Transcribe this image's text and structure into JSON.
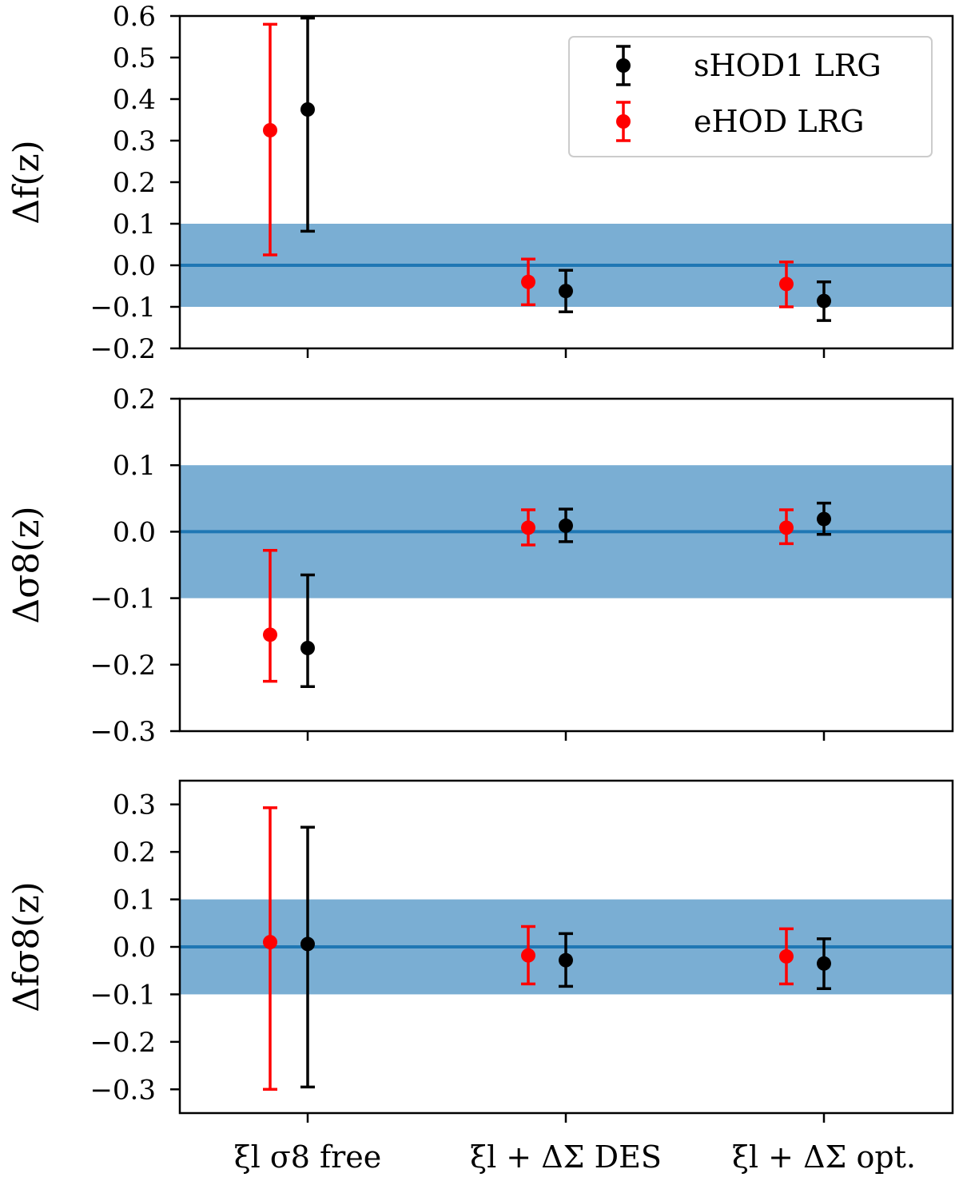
{
  "chart_data": {
    "type": "errorbar",
    "categories": [
      "ξl  σ8 free",
      "ξl + ΔΣ DES",
      "ξl + ΔΣ opt."
    ],
    "legend": {
      "placement": "top-right",
      "entries": [
        {
          "label": "sHOD1 LRG",
          "color": "#000000"
        },
        {
          "label": "eHOD LRG",
          "color": "#ff0000"
        }
      ]
    },
    "band": {
      "lower": -0.1,
      "upper": 0.1,
      "color": "#7aaed3",
      "line_color": "#1f77b4"
    },
    "panels": [
      {
        "ylabel": "Δf(z)",
        "ylim": [
          -0.2,
          0.6
        ],
        "yticks": [
          {
            "value": -0.2,
            "label": "−0.2"
          },
          {
            "value": -0.1,
            "label": "−0.1"
          },
          {
            "value": 0.0,
            "label": "0.0"
          },
          {
            "value": 0.1,
            "label": "0.1"
          },
          {
            "value": 0.2,
            "label": "0.2"
          },
          {
            "value": 0.3,
            "label": "0.3"
          },
          {
            "value": 0.4,
            "label": "0.4"
          },
          {
            "value": 0.5,
            "label": "0.5"
          },
          {
            "value": 0.6,
            "label": "0.6"
          }
        ],
        "show_xtick_labels": false,
        "show_legend": true,
        "series": [
          {
            "name": "eHOD LRG",
            "points": [
              {
                "y": 0.325,
                "lo": 0.025,
                "hi": 0.58
              },
              {
                "y": -0.04,
                "lo": -0.095,
                "hi": 0.015
              },
              {
                "y": -0.045,
                "lo": -0.1,
                "hi": 0.008
              }
            ]
          },
          {
            "name": "sHOD1 LRG",
            "points": [
              {
                "y": 0.375,
                "lo": 0.082,
                "hi": 0.595
              },
              {
                "y": -0.062,
                "lo": -0.112,
                "hi": -0.012
              },
              {
                "y": -0.086,
                "lo": -0.133,
                "hi": -0.04
              }
            ]
          }
        ]
      },
      {
        "ylabel": "Δσ8(z)",
        "ylim": [
          -0.3,
          0.2
        ],
        "yticks": [
          {
            "value": -0.3,
            "label": "−0.3"
          },
          {
            "value": -0.2,
            "label": "−0.2"
          },
          {
            "value": -0.1,
            "label": "−0.1"
          },
          {
            "value": 0.0,
            "label": "0.0"
          },
          {
            "value": 0.1,
            "label": "0.1"
          },
          {
            "value": 0.2,
            "label": "0.2"
          }
        ],
        "show_xtick_labels": false,
        "show_legend": false,
        "series": [
          {
            "name": "eHOD LRG",
            "points": [
              {
                "y": -0.155,
                "lo": -0.225,
                "hi": -0.028
              },
              {
                "y": 0.006,
                "lo": -0.02,
                "hi": 0.033
              },
              {
                "y": 0.006,
                "lo": -0.018,
                "hi": 0.033
              }
            ]
          },
          {
            "name": "sHOD1 LRG",
            "points": [
              {
                "y": -0.175,
                "lo": -0.233,
                "hi": -0.065
              },
              {
                "y": 0.009,
                "lo": -0.015,
                "hi": 0.034
              },
              {
                "y": 0.019,
                "lo": -0.004,
                "hi": 0.043
              }
            ]
          }
        ]
      },
      {
        "ylabel": "Δfσ8(z)",
        "ylim": [
          -0.35,
          0.35
        ],
        "yticks": [
          {
            "value": -0.3,
            "label": "−0.3"
          },
          {
            "value": -0.2,
            "label": "−0.2"
          },
          {
            "value": -0.1,
            "label": "−0.1"
          },
          {
            "value": 0.0,
            "label": "0.0"
          },
          {
            "value": 0.1,
            "label": "0.1"
          },
          {
            "value": 0.2,
            "label": "0.2"
          },
          {
            "value": 0.3,
            "label": "0.3"
          }
        ],
        "show_xtick_labels": true,
        "show_legend": false,
        "series": [
          {
            "name": "eHOD LRG",
            "points": [
              {
                "y": 0.01,
                "lo": -0.3,
                "hi": 0.293
              },
              {
                "y": -0.018,
                "lo": -0.078,
                "hi": 0.043
              },
              {
                "y": -0.02,
                "lo": -0.078,
                "hi": 0.038
              }
            ]
          },
          {
            "name": "sHOD1 LRG",
            "points": [
              {
                "y": 0.006,
                "lo": -0.295,
                "hi": 0.252
              },
              {
                "y": -0.028,
                "lo": -0.083,
                "hi": 0.028
              },
              {
                "y": -0.035,
                "lo": -0.088,
                "hi": 0.017
              }
            ]
          }
        ]
      }
    ]
  }
}
